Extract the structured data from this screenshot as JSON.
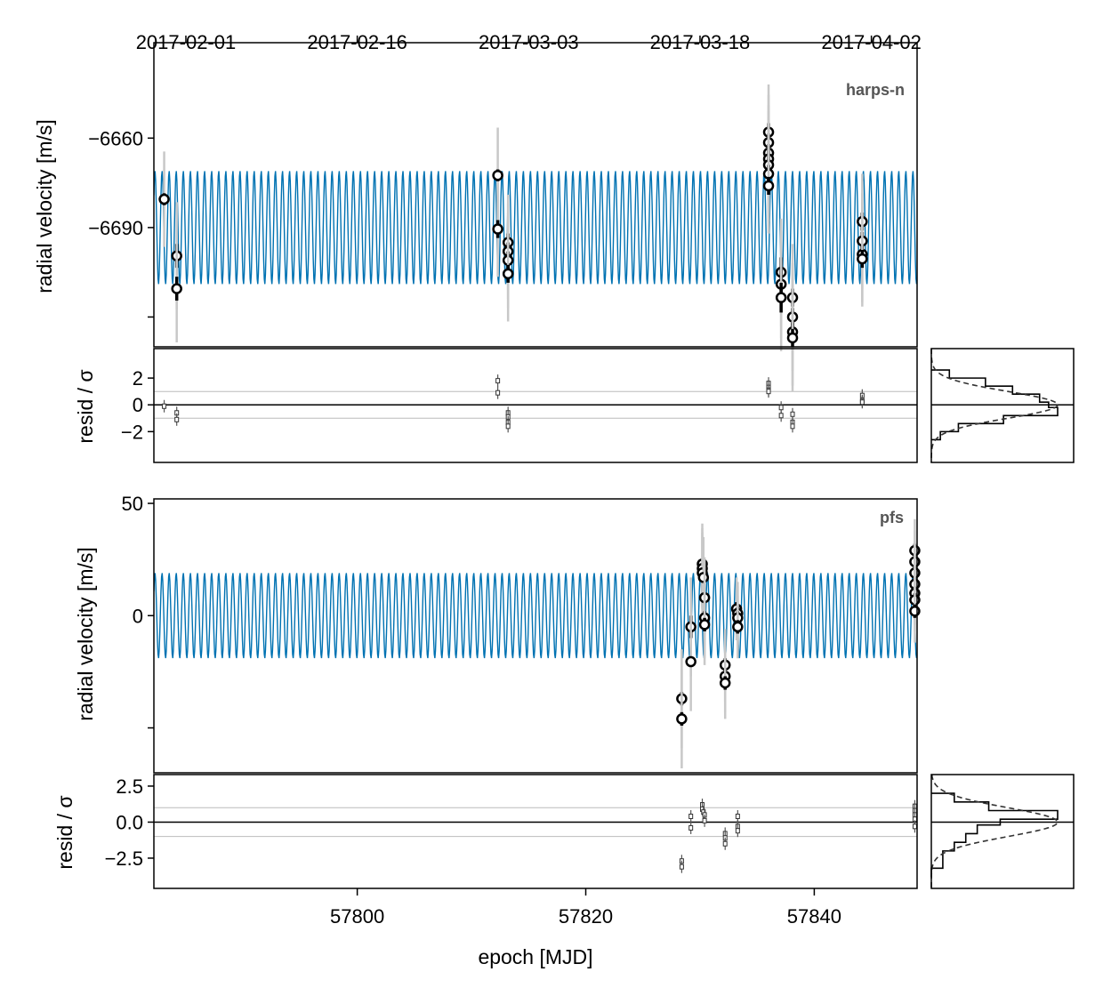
{
  "chart_data": {
    "type": "scatter",
    "xlabel": "epoch [MJD]",
    "x_ticks": [
      57800,
      57820,
      57840
    ],
    "xlim": [
      57782.2,
      57849
    ],
    "date_ticks": {
      "labels": [
        "2017-02-01",
        "2017-02-16",
        "2017-03-03",
        "2017-03-18",
        "2017-04-02"
      ],
      "mjd": [
        57785,
        57800,
        57815,
        57830,
        57845
      ]
    },
    "colors": {
      "model": "#0072b2",
      "data_fill": "#ffffff",
      "data_edge": "#000000",
      "jitter_bar": "#c8c8c8",
      "sigma_lines": "#bbbbbb"
    },
    "panels": [
      {
        "instrument": "harps-n",
        "ylabel": "radial velocity [m/s]",
        "ylim": [
          -6730,
          -6628
        ],
        "y_ticks": [
          -6660,
          -6690,
          -6720
        ],
        "y_tick_labels": [
          "−6660",
          "−6690",
          ""
        ],
        "model": {
          "center": -6690,
          "amplitude": 19,
          "period_days": 0.62
        },
        "points": [
          {
            "t": 57783.1,
            "rv": -6680.5,
            "err": 2,
            "jit": 16
          },
          {
            "t": 57784.2,
            "rv": -6699.5,
            "err": 4,
            "jit": 18
          },
          {
            "t": 57784.2,
            "rv": -6710.5,
            "err": 4,
            "jit": 18
          },
          {
            "t": 57812.3,
            "rv": -6672.5,
            "err": 2,
            "jit": 16
          },
          {
            "t": 57812.3,
            "rv": -6690.5,
            "err": 3,
            "jit": 16
          },
          {
            "t": 57813.2,
            "rv": -6695,
            "err": 3,
            "jit": 16
          },
          {
            "t": 57813.2,
            "rv": -6698,
            "err": 3,
            "jit": 16
          },
          {
            "t": 57813.2,
            "rv": -6701,
            "err": 3,
            "jit": 16
          },
          {
            "t": 57813.2,
            "rv": -6705.5,
            "err": 3,
            "jit": 16
          },
          {
            "t": 57836.0,
            "rv": -6658,
            "err": 3,
            "jit": 16
          },
          {
            "t": 57836.0,
            "rv": -6661.5,
            "err": 3,
            "jit": 16
          },
          {
            "t": 57836.0,
            "rv": -6665,
            "err": 3,
            "jit": 16
          },
          {
            "t": 57836.0,
            "rv": -6667,
            "err": 3,
            "jit": 16
          },
          {
            "t": 57836.0,
            "rv": -6669,
            "err": 3,
            "jit": 16
          },
          {
            "t": 57836.0,
            "rv": -6672,
            "err": 3,
            "jit": 16
          },
          {
            "t": 57836.0,
            "rv": -6676,
            "err": 3,
            "jit": 16
          },
          {
            "t": 57837.1,
            "rv": -6705,
            "err": 5,
            "jit": 18
          },
          {
            "t": 57837.1,
            "rv": -6709,
            "err": 5,
            "jit": 18
          },
          {
            "t": 57837.1,
            "rv": -6713.5,
            "err": 5,
            "jit": 18
          },
          {
            "t": 57838.1,
            "rv": -6713.5,
            "err": 3,
            "jit": 18
          },
          {
            "t": 57838.1,
            "rv": -6720,
            "err": 3,
            "jit": 18
          },
          {
            "t": 57838.1,
            "rv": -6725,
            "err": 3,
            "jit": 18
          },
          {
            "t": 57838.1,
            "rv": -6727,
            "err": 3,
            "jit": 18
          },
          {
            "t": 57844.2,
            "rv": -6688,
            "err": 3,
            "jit": 16
          },
          {
            "t": 57844.2,
            "rv": -6694.5,
            "err": 3,
            "jit": 16
          },
          {
            "t": 57844.2,
            "rv": -6699,
            "err": 3,
            "jit": 16
          },
          {
            "t": 57844.2,
            "rv": -6700.5,
            "err": 3,
            "jit": 16
          }
        ],
        "resid": {
          "ylabel": "resid / σ",
          "ylim": [
            -4.3,
            4.2
          ],
          "y_ticks": [
            2,
            0,
            -2
          ],
          "y_tick_labels": [
            "2",
            "0",
            "−2"
          ],
          "points": [
            {
              "t": 57783.1,
              "r": -0.1
            },
            {
              "t": 57784.2,
              "r": -0.6
            },
            {
              "t": 57784.2,
              "r": -1.1
            },
            {
              "t": 57812.3,
              "r": 1.8
            },
            {
              "t": 57812.3,
              "r": 0.9
            },
            {
              "t": 57813.2,
              "r": -0.6
            },
            {
              "t": 57813.2,
              "r": -0.9
            },
            {
              "t": 57813.2,
              "r": -1.3
            },
            {
              "t": 57813.2,
              "r": -1.6
            },
            {
              "t": 57836.0,
              "r": 1.6
            },
            {
              "t": 57836.0,
              "r": 1.3
            },
            {
              "t": 57836.0,
              "r": 1.1
            },
            {
              "t": 57836.0,
              "r": 1.0
            },
            {
              "t": 57837.1,
              "r": -0.2
            },
            {
              "t": 57837.1,
              "r": -0.8
            },
            {
              "t": 57838.1,
              "r": -0.7
            },
            {
              "t": 57838.1,
              "r": -1.3
            },
            {
              "t": 57838.1,
              "r": -1.6
            },
            {
              "t": 57844.2,
              "r": 0.7
            },
            {
              "t": 57844.2,
              "r": 0.3
            },
            {
              "t": 57844.2,
              "r": 0.2
            }
          ]
        },
        "hist": {
          "bins": [
            {
              "r": [
                2.0,
                2.6
              ],
              "n": 2
            },
            {
              "r": [
                1.4,
                2.0
              ],
              "n": 6
            },
            {
              "r": [
                0.8,
                1.4
              ],
              "n": 9
            },
            {
              "r": [
                0.2,
                0.8
              ],
              "n": 12
            },
            {
              "r": [
                -0.2,
                0.2
              ],
              "n": 13
            },
            {
              "r": [
                -0.8,
                -0.2
              ],
              "n": 14
            },
            {
              "r": [
                -1.4,
                -0.8
              ],
              "n": 8
            },
            {
              "r": [
                -2.0,
                -1.4
              ],
              "n": 3
            },
            {
              "r": [
                -2.6,
                -2.0
              ],
              "n": 1
            }
          ]
        }
      },
      {
        "instrument": "pfs",
        "ylabel": "radial velocity [m/s]",
        "ylim": [
          -70,
          52
        ],
        "y_ticks": [
          50,
          0,
          -50
        ],
        "y_tick_labels": [
          "50",
          "0",
          ""
        ],
        "model": {
          "center": 0,
          "amplitude": 19,
          "period_days": 0.62
        },
        "points": [
          {
            "t": 57828.4,
            "rv": -37,
            "err": 3,
            "jit": 22
          },
          {
            "t": 57828.4,
            "rv": -46,
            "err": 3,
            "jit": 22
          },
          {
            "t": 57829.2,
            "rv": -5,
            "err": 5,
            "jit": 22
          },
          {
            "t": 57829.2,
            "rv": -20.5,
            "err": 2,
            "jit": 22
          },
          {
            "t": 57830.2,
            "rv": 23,
            "err": 2,
            "jit": 18
          },
          {
            "t": 57830.2,
            "rv": 21,
            "err": 2,
            "jit": 18
          },
          {
            "t": 57830.2,
            "rv": 19,
            "err": 2,
            "jit": 18
          },
          {
            "t": 57830.3,
            "rv": 17,
            "err": 2,
            "jit": 18
          },
          {
            "t": 57830.4,
            "rv": 8,
            "err": 2,
            "jit": 18
          },
          {
            "t": 57830.4,
            "rv": -1,
            "err": 3,
            "jit": 18
          },
          {
            "t": 57830.4,
            "rv": -4,
            "err": 3,
            "jit": 18
          },
          {
            "t": 57832.2,
            "rv": -22,
            "err": 3,
            "jit": 16
          },
          {
            "t": 57832.2,
            "rv": -27,
            "err": 3,
            "jit": 16
          },
          {
            "t": 57832.2,
            "rv": -30,
            "err": 3,
            "jit": 16
          },
          {
            "t": 57833.2,
            "rv": 3,
            "err": 3,
            "jit": 14
          },
          {
            "t": 57833.3,
            "rv": 1,
            "err": 3,
            "jit": 14
          },
          {
            "t": 57833.3,
            "rv": -1,
            "err": 3,
            "jit": 14
          },
          {
            "t": 57833.3,
            "rv": -5,
            "err": 3,
            "jit": 14
          },
          {
            "t": 57848.8,
            "rv": 29,
            "err": 3,
            "jit": 14
          },
          {
            "t": 57848.8,
            "rv": 24,
            "err": 3,
            "jit": 14
          },
          {
            "t": 57848.8,
            "rv": 19,
            "err": 3,
            "jit": 14
          },
          {
            "t": 57848.8,
            "rv": 14,
            "err": 3,
            "jit": 14
          },
          {
            "t": 57848.8,
            "rv": 10,
            "err": 3,
            "jit": 14
          },
          {
            "t": 57848.8,
            "rv": 7,
            "err": 3,
            "jit": 14
          },
          {
            "t": 57848.8,
            "rv": 2,
            "err": 3,
            "jit": 14
          }
        ],
        "resid": {
          "ylabel": "resid / σ",
          "ylim": [
            -4.6,
            3.3
          ],
          "y_ticks": [
            2.5,
            0,
            -2.5
          ],
          "y_tick_labels": [
            "2.5",
            "0.0",
            "−2.5"
          ],
          "points": [
            {
              "t": 57828.4,
              "r": -2.7
            },
            {
              "t": 57828.4,
              "r": -3.1
            },
            {
              "t": 57829.2,
              "r": 0.4
            },
            {
              "t": 57829.2,
              "r": -0.4
            },
            {
              "t": 57830.2,
              "r": 1.2
            },
            {
              "t": 57830.2,
              "r": 0.9
            },
            {
              "t": 57830.3,
              "r": 0.7
            },
            {
              "t": 57830.4,
              "r": 0.5
            },
            {
              "t": 57830.4,
              "r": 0.1
            },
            {
              "t": 57832.2,
              "r": -0.8
            },
            {
              "t": 57832.2,
              "r": -1.1
            },
            {
              "t": 57832.2,
              "r": -1.5
            },
            {
              "t": 57833.3,
              "r": 0.4
            },
            {
              "t": 57833.3,
              "r": -0.3
            },
            {
              "t": 57833.3,
              "r": -0.6
            },
            {
              "t": 57848.8,
              "r": 1.1
            },
            {
              "t": 57848.8,
              "r": 0.8
            },
            {
              "t": 57848.8,
              "r": 0.5
            },
            {
              "t": 57848.8,
              "r": 0.2
            },
            {
              "t": 57848.8,
              "r": -0.3
            }
          ]
        },
        "hist": {
          "bins": [
            {
              "r": [
                1.4,
                2.0
              ],
              "n": 2
            },
            {
              "r": [
                0.8,
                1.4
              ],
              "n": 5
            },
            {
              "r": [
                0.2,
                0.8
              ],
              "n": 11
            },
            {
              "r": [
                -0.2,
                0.2
              ],
              "n": 6
            },
            {
              "r": [
                -0.8,
                -0.2
              ],
              "n": 4
            },
            {
              "r": [
                -1.4,
                -0.8
              ],
              "n": 3
            },
            {
              "r": [
                -2.0,
                -1.4
              ],
              "n": 2
            },
            {
              "r": [
                -2.6,
                -2.0
              ],
              "n": 1
            },
            {
              "r": [
                -3.2,
                -2.6
              ],
              "n": 1
            },
            {
              "r": [
                -3.8,
                -3.2
              ],
              "n": 0
            }
          ]
        }
      }
    ]
  }
}
